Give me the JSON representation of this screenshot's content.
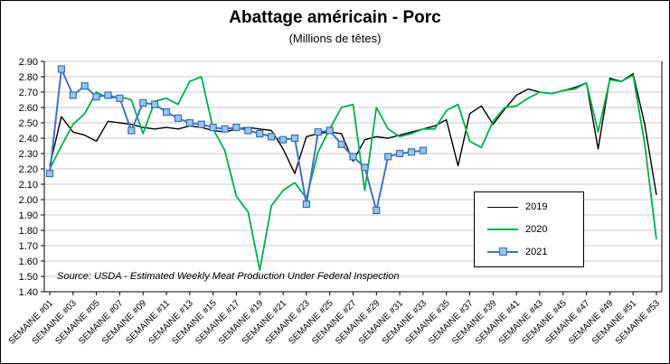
{
  "chart_data": {
    "type": "line",
    "title": "Abattage américain - Porc",
    "subtitle": "(Millions de têtes)",
    "source": "Source: USDA - Estimated Weekly Meat Production Under Federal Inspection",
    "weeks": 53,
    "ylim": [
      1.4,
      2.9
    ],
    "grid": true,
    "legend_position": "inside-right-middle",
    "xlabel": "",
    "ylabel": "",
    "y_ticks": [
      "1.40",
      "1.50",
      "1.60",
      "1.70",
      "1.80",
      "1.90",
      "2.00",
      "2.10",
      "2.20",
      "2.30",
      "2.40",
      "2.50",
      "2.60",
      "2.70",
      "2.80",
      "2.90"
    ],
    "x_tick_labels": [
      "SEMAINE #01",
      "SEMAINE #03",
      "SEMAINE #05",
      "SEMAINE #07",
      "SEMAINE #09",
      "SEMAINE #11",
      "SEMAINE #13",
      "SEMAINE #15",
      "SEMAINE #17",
      "SEMAINE #19",
      "SEMAINE #21",
      "SEMAINE #23",
      "SEMAINE #25",
      "SEMAINE #27",
      "SEMAINE #29",
      "SEMAINE #31",
      "SEMAINE #33",
      "SEMAINE #35",
      "SEMAINE #37",
      "SEMAINE #39",
      "SEMAINE #41",
      "SEMAINE #43",
      "SEMAINE #45",
      "SEMAINE #47",
      "SEMAINE #49",
      "SEMAINE #51",
      "SEMAINE #53"
    ],
    "colors": {
      "grid": "#c9c9c9",
      "axis": "#000000",
      "background": "#ffffff"
    },
    "series": [
      {
        "name": "2019",
        "color": "#000000",
        "width": 1.4,
        "values": [
          2.22,
          2.54,
          2.44,
          2.42,
          2.38,
          2.51,
          2.5,
          2.49,
          2.47,
          2.46,
          2.47,
          2.46,
          2.48,
          2.47,
          2.45,
          2.44,
          2.46,
          2.47,
          2.46,
          2.45,
          2.33,
          2.17,
          2.41,
          2.43,
          2.44,
          2.43,
          2.25,
          2.39,
          2.41,
          2.4,
          2.42,
          2.44,
          2.46,
          2.48,
          2.52,
          2.22,
          2.56,
          2.61,
          2.49,
          2.59,
          2.68,
          2.72,
          2.7,
          2.69,
          2.71,
          2.73,
          2.76,
          2.33,
          2.79,
          2.77,
          2.82,
          2.49,
          2.03
        ]
      },
      {
        "name": "2020",
        "color": "#00B050",
        "width": 1.8,
        "values": [
          2.2,
          2.35,
          2.49,
          2.56,
          2.7,
          2.66,
          2.67,
          2.65,
          2.43,
          2.64,
          2.66,
          2.62,
          2.77,
          2.8,
          2.46,
          2.32,
          2.02,
          1.92,
          1.54,
          1.96,
          2.06,
          2.11,
          2.01,
          2.31,
          2.46,
          2.6,
          2.62,
          2.06,
          2.6,
          2.46,
          2.41,
          2.43,
          2.46,
          2.46,
          2.58,
          2.62,
          2.38,
          2.34,
          2.51,
          2.6,
          2.61,
          2.66,
          2.7,
          2.69,
          2.71,
          2.72,
          2.76,
          2.44,
          2.78,
          2.77,
          2.81,
          2.36,
          1.74
        ]
      },
      {
        "name": "2021",
        "color": "#4472C4",
        "width": 2,
        "marker": {
          "shape": "square",
          "fill": "#9DC3E6",
          "stroke": "#2E75B6"
        },
        "values": [
          2.17,
          2.85,
          2.68,
          2.74,
          2.67,
          2.68,
          2.66,
          2.45,
          2.63,
          2.62,
          2.57,
          2.53,
          2.5,
          2.49,
          2.47,
          2.46,
          2.47,
          2.45,
          2.43,
          2.41,
          2.39,
          2.4,
          1.97,
          2.44,
          2.45,
          2.36,
          2.28,
          2.21,
          1.93,
          2.28,
          2.3,
          2.31,
          2.32
        ]
      }
    ]
  }
}
